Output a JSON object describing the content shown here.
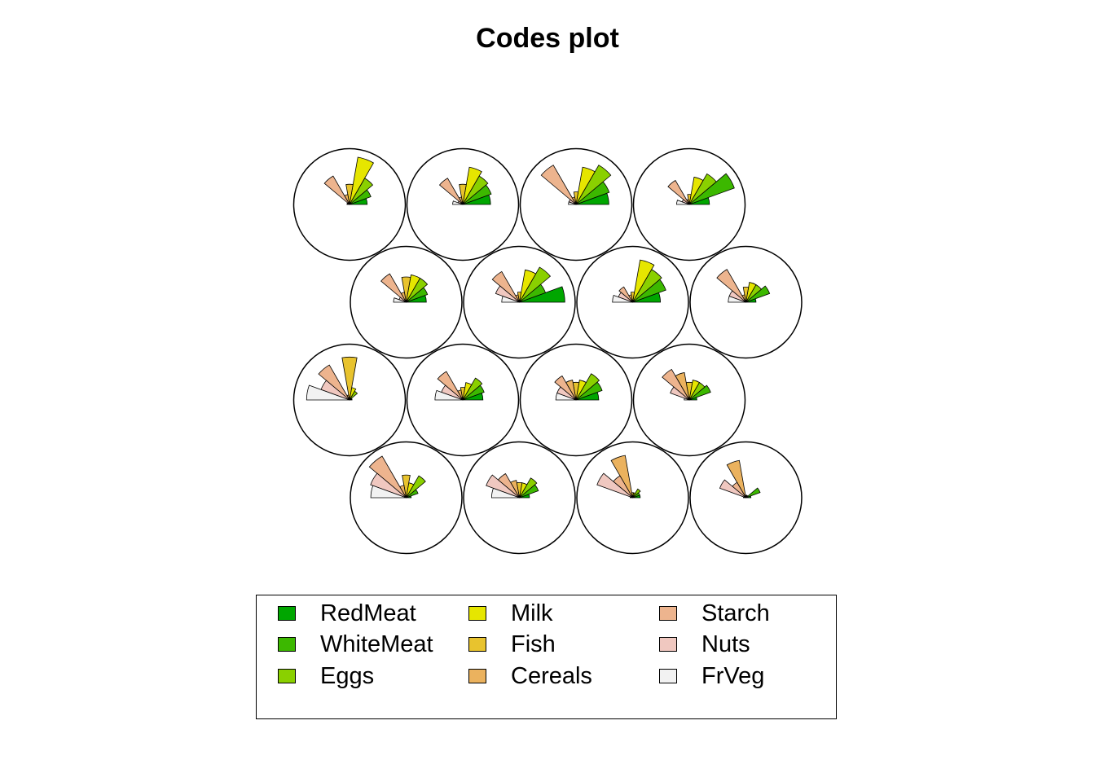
{
  "chart_data": {
    "type": "som-codes-segment-plot",
    "title": "Codes plot",
    "variables": [
      "RedMeat",
      "WhiteMeat",
      "Eggs",
      "Milk",
      "Fish",
      "Cereals",
      "Starch",
      "Nuts",
      "FrVeg"
    ],
    "colors": [
      "#00a600",
      "#3cb800",
      "#8ad000",
      "#e6e600",
      "#e8c32e",
      "#ebb25e",
      "#edb48e",
      "#f0c8c0",
      "#f2f2f2"
    ],
    "grid": {
      "xdim": 4,
      "ydim": 4,
      "topology": "hexagonal"
    },
    "units": [
      {
        "row": 1,
        "col": 1,
        "values": [
          0.35,
          0.45,
          0.6,
          0.95,
          0.4,
          0.2,
          0.65,
          0.05,
          0.05
        ]
      },
      {
        "row": 1,
        "col": 2,
        "values": [
          0.55,
          0.6,
          0.65,
          0.75,
          0.4,
          0.15,
          0.6,
          0.1,
          0.2
        ]
      },
      {
        "row": 1,
        "col": 3,
        "values": [
          0.65,
          0.7,
          0.9,
          0.75,
          0.25,
          0.15,
          0.9,
          0.15,
          0.15
        ]
      },
      {
        "row": 1,
        "col": 4,
        "values": [
          0.4,
          0.95,
          0.7,
          0.55,
          0.2,
          0.1,
          0.55,
          0.15,
          0.25
        ]
      },
      {
        "row": 2,
        "col": 1,
        "values": [
          0.4,
          0.45,
          0.55,
          0.55,
          0.5,
          0.2,
          0.65,
          0.15,
          0.25
        ]
      },
      {
        "row": 2,
        "col": 2,
        "values": [
          0.9,
          0.55,
          0.8,
          0.65,
          0.2,
          0.15,
          0.7,
          0.5,
          0.35
        ]
      },
      {
        "row": 2,
        "col": 3,
        "values": [
          0.55,
          0.7,
          0.75,
          0.85,
          0.2,
          0.15,
          0.35,
          0.3,
          0.4
        ]
      },
      {
        "row": 2,
        "col": 4,
        "values": [
          0.2,
          0.5,
          0.4,
          0.4,
          0.3,
          0.15,
          0.75,
          0.35,
          0.35
        ]
      },
      {
        "row": 3,
        "col": 1,
        "values": [
          0.05,
          0.05,
          0.2,
          0.25,
          0.85,
          0.1,
          0.8,
          0.6,
          0.85
        ]
      },
      {
        "row": 3,
        "col": 2,
        "values": [
          0.4,
          0.45,
          0.5,
          0.35,
          0.25,
          0.2,
          0.65,
          0.45,
          0.55
        ]
      },
      {
        "row": 3,
        "col": 3,
        "values": [
          0.45,
          0.55,
          0.6,
          0.4,
          0.35,
          0.4,
          0.55,
          0.4,
          0.4
        ]
      },
      {
        "row": 3,
        "col": 4,
        "values": [
          0.15,
          0.45,
          0.4,
          0.4,
          0.35,
          0.55,
          0.7,
          0.4,
          0.1
        ]
      },
      {
        "row": 4,
        "col": 1,
        "values": [
          0.1,
          0.25,
          0.5,
          0.3,
          0.45,
          0.25,
          0.95,
          0.75,
          0.7
        ]
      },
      {
        "row": 4,
        "col": 2,
        "values": [
          0.2,
          0.4,
          0.45,
          0.3,
          0.3,
          0.35,
          0.55,
          0.7,
          0.55
        ]
      },
      {
        "row": 4,
        "col": 3,
        "values": [
          0.15,
          0.15,
          0.2,
          0.1,
          0.1,
          0.85,
          0.5,
          0.75,
          0.05
        ]
      },
      {
        "row": 4,
        "col": 4,
        "values": [
          0.1,
          0.3,
          0.05,
          0.05,
          0.05,
          0.75,
          0.35,
          0.55,
          0.05
        ]
      }
    ],
    "legend_position": "bottom"
  }
}
